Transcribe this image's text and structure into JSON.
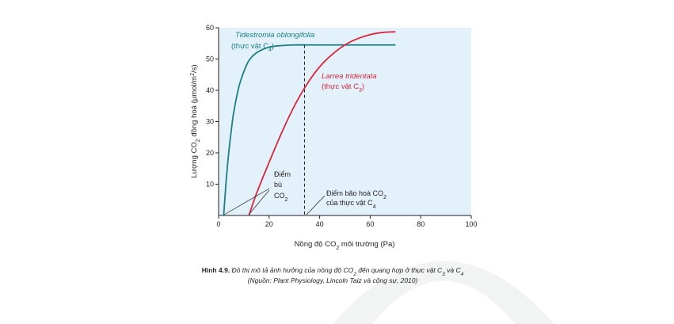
{
  "chart_data": {
    "type": "line",
    "xlabel": {
      "pre": "Nồng độ CO",
      "sub": "2",
      "post": " môi trường (Pa)"
    },
    "ylabel": {
      "pre": "Lượng CO",
      "sub1": "2",
      "mid": " đồng hoá (μmol/m",
      "sup": "2",
      "post": "/s)"
    },
    "xlim": [
      0,
      100
    ],
    "ylim": [
      0,
      60
    ],
    "x_ticks": [
      "0",
      "20",
      "40",
      "60",
      "80",
      "100"
    ],
    "y_ticks": [
      "10",
      "20",
      "30",
      "40",
      "50",
      "60"
    ],
    "grid": false,
    "series": [
      {
        "name": "Tidestromia oblongifolia",
        "group": {
          "pre": "(thực vật C",
          "sub": "4",
          "post": ")"
        },
        "color": "#1a7f86",
        "x": [
          2,
          3,
          4,
          5,
          6,
          8,
          10,
          12,
          15,
          20,
          25,
          30,
          35,
          40,
          50,
          60,
          70
        ],
        "y": [
          0,
          11,
          20,
          27,
          33,
          41,
          46,
          49.5,
          52,
          53.8,
          54.3,
          54.5,
          54.5,
          54.5,
          54.5,
          54.5,
          54.5
        ]
      },
      {
        "name": "Larrea tridentata",
        "group": {
          "pre": "(thực vật C",
          "sub": "3",
          "post": ")"
        },
        "color": "#d7263d",
        "x": [
          12,
          15,
          20,
          25,
          30,
          35,
          40,
          45,
          50,
          55,
          60,
          65,
          70
        ],
        "y": [
          0,
          7,
          17,
          26.5,
          35,
          42,
          47.5,
          51.5,
          54.5,
          56.5,
          57.8,
          58.5,
          58.7
        ]
      }
    ],
    "annotations": {
      "compensation": {
        "line1": "Điểm",
        "line2": "bù",
        "line3_pre": "CO",
        "line3_sub": "2"
      },
      "saturation": {
        "line1_pre": "Điểm bão hoà CO",
        "line1_sub": "2",
        "line2_pre": "của thực vật C",
        "line2_sub": "4",
        "x": 34
      }
    },
    "caption": {
      "bold": "Hình 4.9.",
      "line1_pre": " Đồ thị mô tả ảnh hưởng của nồng độ CO",
      "line1_sub1": "2",
      "line1_mid": " đến quang hợp ở thực vật C",
      "line1_sub2": "3",
      "line1_and": " và C",
      "line1_sub3": "4",
      "line2": "(Nguồn: Plant Physiology, Lincoln Taiz và cộng sự, 2010)"
    }
  }
}
